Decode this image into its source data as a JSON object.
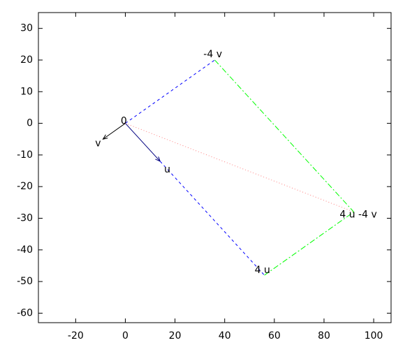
{
  "chart_data": {
    "type": "vector",
    "xlim": [
      -35,
      107
    ],
    "ylim": [
      -63,
      35
    ],
    "xticks": [
      -20,
      0,
      20,
      40,
      60,
      80,
      100
    ],
    "yticks": [
      -60,
      -50,
      -40,
      -30,
      -20,
      -10,
      0,
      10,
      20,
      30
    ],
    "segments": [
      {
        "x0": 0,
        "y0": 0,
        "x1": -9,
        "y1": -5,
        "color": "#000000",
        "dash": "solid",
        "arrow": true
      },
      {
        "x0": 0,
        "y0": 0,
        "x1": 14,
        "y1": -12,
        "color": "#000080",
        "dash": "solid",
        "arrow": true
      },
      {
        "x0": 0,
        "y0": 0,
        "x1": 36,
        "y1": 20,
        "color": "#0000ff",
        "dash": "dashed",
        "arrow": false
      },
      {
        "x0": 14,
        "y0": -12,
        "x1": 56,
        "y1": -48,
        "color": "#0000ff",
        "dash": "dashed",
        "arrow": false
      },
      {
        "x0": 36,
        "y0": 20,
        "x1": 92,
        "y1": -28,
        "color": "#00ff00",
        "dash": "dashdot",
        "arrow": false
      },
      {
        "x0": 56,
        "y0": -48,
        "x1": 92,
        "y1": -28,
        "color": "#00ff00",
        "dash": "dashdot",
        "arrow": false
      },
      {
        "x0": 0,
        "y0": 0,
        "x1": 92,
        "y1": -28,
        "color": "#ff8080",
        "dash": "dotted",
        "arrow": false
      }
    ],
    "labels": [
      {
        "text": "0",
        "x": -0.6,
        "y": 0.7
      },
      {
        "text": "v",
        "x": -11,
        "y": -6.4
      },
      {
        "text": "u",
        "x": 16.9,
        "y": -14.7
      },
      {
        "text": "-4 v",
        "x": 35.2,
        "y": 21.8
      },
      {
        "text": "4 u",
        "x": 55.2,
        "y": -46.4
      },
      {
        "text": "4 u -4 v",
        "x": 93.8,
        "y": -28.9
      }
    ]
  }
}
